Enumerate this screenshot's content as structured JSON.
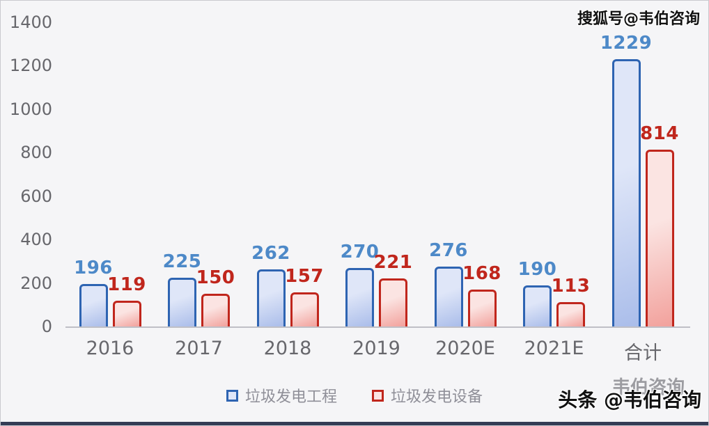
{
  "watermarks": {
    "top_right": "搜狐号@韦伯咨询",
    "bottom_main": "头条 @韦伯咨询",
    "bottom_ghost": "韦伯咨询"
  },
  "chart_data": {
    "type": "bar",
    "categories": [
      "2016",
      "2017",
      "2018",
      "2019",
      "2020E",
      "2021E",
      "合计"
    ],
    "series": [
      {
        "name": "垃圾发电工程",
        "values": [
          196,
          225,
          262,
          270,
          276,
          190,
          1229
        ],
        "border": "#2e64b2",
        "fill_light": "#dfe6f8",
        "fill_dark": "#aabdea",
        "label_color": "#4d89c8"
      },
      {
        "name": "垃圾发电设备",
        "values": [
          119,
          150,
          157,
          221,
          168,
          113,
          814
        ],
        "border": "#c0261c",
        "fill_light": "#fbe4e2",
        "fill_dark": "#f2a19c",
        "label_color": "#c0261c"
      }
    ],
    "title": "",
    "xlabel": "",
    "ylabel": "",
    "ylim": [
      0,
      1400
    ],
    "yticks": [
      0,
      200,
      400,
      600,
      800,
      1000,
      1200,
      1400
    ],
    "grid": false,
    "legend_position": "bottom",
    "value_labels": true
  },
  "colors": {
    "background": "#f5f5f7",
    "axis_line": "#bfbfc6",
    "tick_text": "#67676c",
    "legend_text": "#8f8f98",
    "bottom_strip": "#343c55"
  }
}
